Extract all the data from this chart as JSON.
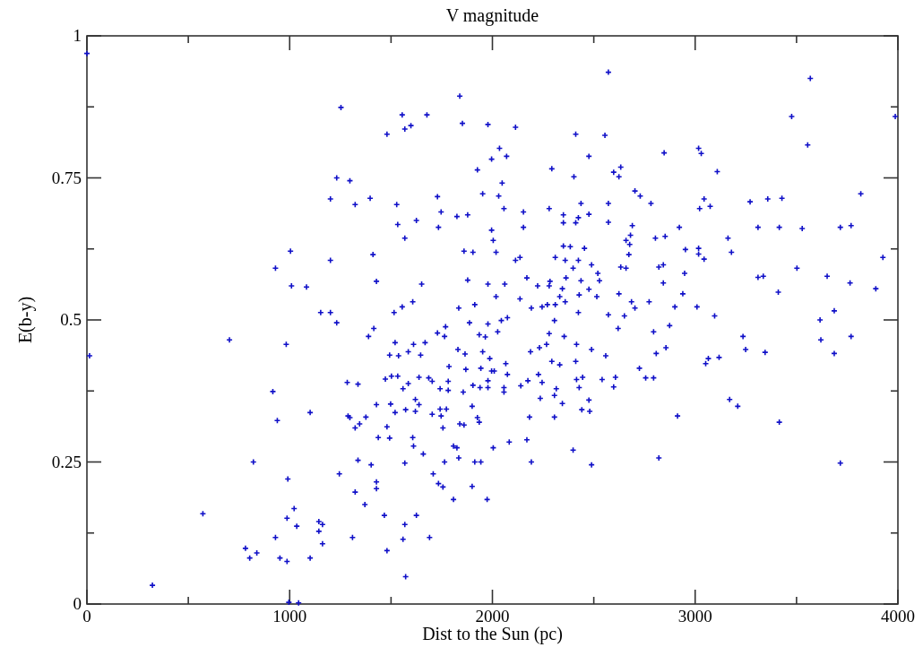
{
  "chart_data": {
    "type": "scatter",
    "x2label": "V magnitude",
    "xlabel": "Dist to the Sun (pc)",
    "ylabel": "E(b-y)",
    "xlim": [
      0,
      4000
    ],
    "ylim": [
      0,
      1
    ],
    "xticks": [
      0,
      {
        "value": 500,
        "label": null
      },
      1000,
      {
        "value": 1500,
        "label": null
      },
      2000,
      {
        "value": 2500,
        "label": null
      },
      3000,
      {
        "value": 3500,
        "label": null
      },
      4000
    ],
    "yticks": [
      0,
      {
        "value": 0.125,
        "label": null
      },
      0.25,
      {
        "value": 0.375,
        "label": null
      },
      0.5,
      {
        "value": 0.625,
        "label": null
      },
      0.75,
      {
        "value": 0.875,
        "label": null
      },
      1
    ],
    "grid": false,
    "marker": "cross",
    "series": [
      {
        "color": "#1010c8",
        "x": [
          0,
          13,
          703,
          983,
          1232,
          1415,
          1389,
          1520,
          1493,
          1537,
          1585,
          1611,
          1646,
          1668,
          1729,
          1769,
          1764,
          1830,
          1865,
          1887,
          1935,
          1965,
          1978,
          1952,
          1987,
          1869,
          1943,
          1996,
          1786,
          1472,
          1502,
          1533,
          1559,
          1585,
          1638,
          1686,
          1703,
          1742,
          1782,
          1782,
          1856,
          1904,
          1939,
          1978,
          1978,
          1284,
          1337,
          917,
          939,
          1101,
          1428,
          1498,
          1520,
          1572,
          1620,
          1638,
          1620,
          1703,
          1742,
          1747,
          1773,
          1756,
          1900,
          1926,
          1935,
          1839,
          1860,
          1288,
          1297,
          1376,
          1345,
          1323,
          1480,
          1437,
          1493,
          1607,
          1611,
          1659,
          1808,
          1825,
          1834,
          1764,
          1913,
          1943,
          2004,
          1568,
          1337,
          1402,
          821,
          1245,
          991,
          1428,
          1428,
          1708,
          1734,
          1756,
          1900,
          1323,
          1371,
          1808,
          1974,
          1467,
          1625,
          572,
          1022,
          987,
          1035,
          1144,
          1162,
          1144,
          1162,
          1568,
          930,
          1310,
          1559,
          1690,
          782,
          803,
          838,
          952,
          987,
          1101,
          1480,
          1572,
          323,
          996,
          1044,
          1253,
          1555,
          1677,
          1568,
          1598,
          1480,
          1839,
          1852,
          1978,
          1996,
          1926,
          1952,
          1232,
          1297,
          1201,
          1323,
          1397,
          1528,
          1729,
          1747,
          1533,
          1625,
          1734,
          1825,
          1878,
          1996,
          2004,
          1568,
          1004,
          1411,
          1860,
          1904,
          930,
          1201,
          1009,
          1083,
          1428,
          1651,
          1878,
          1978,
          1153,
          1201,
          1515,
          1555,
          1607,
          1834,
          1913,
          2572,
          3568,
          3476,
          3987,
          3555,
          2114,
          2411,
          2555,
          2035,
          2070,
          2847,
          3017,
          3030,
          2476,
          2293,
          2402,
          2598,
          2633,
          2624,
          3109,
          2048,
          2031,
          2057,
          2280,
          2437,
          2350,
          2350,
          2411,
          2424,
          2476,
          2153,
          2153,
          2572,
          2572,
          2703,
          2729,
          2782,
          2690,
          2681,
          2659,
          2677,
          2673,
          2922,
          2804,
          2852,
          3044,
          3022,
          3074,
          3271,
          3358,
          3428,
          3817,
          3310,
          3415,
          3528,
          3716,
          3769,
          3162,
          3179,
          2952,
          3017,
          3017,
          3044,
          3926,
          3502,
          3891,
          3310,
          3336,
          3410,
          3651,
          3764,
          3686,
          3616,
          2018,
          2114,
          2136,
          2310,
          2359,
          2398,
          2424,
          2489,
          2454,
          2384,
          2350,
          2520,
          2528,
          2633,
          2659,
          2821,
          2843,
          2843,
          2948,
          2939,
          2900,
          3009,
          3096,
          2773,
          2686,
          2703,
          2624,
          2572,
          2651,
          2424,
          2515,
          2476,
          2437,
          2428,
          2363,
          2345,
          2332,
          2359,
          2284,
          2280,
          2223,
          2170,
          2136,
          2061,
          2018,
          2192,
          2245,
          2271,
          2310,
          2306,
          2044,
          2074,
          2026,
          2280,
          2354,
          2620,
          2795,
          2874,
          2415,
          2267,
          2232,
          2188,
          2489,
          2559,
          2808,
          2856,
          2293,
          2332,
          2411,
          2009,
          2066,
          2074,
          2227,
          2175,
          2140,
          2245,
          2315,
          2306,
          2236,
          2345,
          2415,
          2445,
          2428,
          2541,
          2607,
          2598,
          2476,
          2441,
          2480,
          2183,
          2306,
          2057,
          2057,
          2725,
          2756,
          2795,
          3052,
          3065,
          3118,
          3236,
          3249,
          3345,
          3620,
          3686,
          3769,
          3170,
          3210,
          2913,
          3415,
          2083,
          2170,
          2398,
          2192,
          2489,
          2821,
          3716
        ],
        "values": [
          0.969,
          0.437,
          0.465,
          0.457,
          0.495,
          0.485,
          0.471,
          0.46,
          0.438,
          0.437,
          0.444,
          0.457,
          0.438,
          0.46,
          0.477,
          0.488,
          0.471,
          0.448,
          0.44,
          0.495,
          0.474,
          0.47,
          0.493,
          0.444,
          0.432,
          0.413,
          0.415,
          0.41,
          0.418,
          0.396,
          0.401,
          0.401,
          0.379,
          0.388,
          0.399,
          0.398,
          0.392,
          0.379,
          0.392,
          0.376,
          0.373,
          0.385,
          0.381,
          0.381,
          0.393,
          0.39,
          0.387,
          0.374,
          0.323,
          0.337,
          0.351,
          0.352,
          0.337,
          0.342,
          0.36,
          0.351,
          0.339,
          0.334,
          0.343,
          0.331,
          0.343,
          0.31,
          0.348,
          0.328,
          0.32,
          0.317,
          0.315,
          0.331,
          0.328,
          0.329,
          0.317,
          0.31,
          0.312,
          0.293,
          0.292,
          0.293,
          0.278,
          0.264,
          0.278,
          0.275,
          0.257,
          0.25,
          0.25,
          0.25,
          0.275,
          0.248,
          0.253,
          0.245,
          0.25,
          0.229,
          0.22,
          0.215,
          0.203,
          0.229,
          0.212,
          0.206,
          0.207,
          0.197,
          0.175,
          0.184,
          0.184,
          0.156,
          0.156,
          0.159,
          0.168,
          0.151,
          0.137,
          0.145,
          0.14,
          0.128,
          0.106,
          0.14,
          0.117,
          0.117,
          0.114,
          0.117,
          0.098,
          0.081,
          0.09,
          0.081,
          0.075,
          0.081,
          0.094,
          0.048,
          0.033,
          0.003,
          0.002,
          0.874,
          0.861,
          0.861,
          0.836,
          0.842,
          0.827,
          0.894,
          0.846,
          0.844,
          0.783,
          0.764,
          0.722,
          0.75,
          0.745,
          0.713,
          0.703,
          0.714,
          0.703,
          0.717,
          0.69,
          0.668,
          0.675,
          0.663,
          0.682,
          0.685,
          0.658,
          0.64,
          0.644,
          0.621,
          0.615,
          0.621,
          0.619,
          0.591,
          0.605,
          0.56,
          0.558,
          0.568,
          0.563,
          0.57,
          0.563,
          0.513,
          0.513,
          0.513,
          0.523,
          0.532,
          0.521,
          0.527,
          0.936,
          0.925,
          0.858,
          0.858,
          0.808,
          0.839,
          0.827,
          0.825,
          0.802,
          0.788,
          0.794,
          0.802,
          0.793,
          0.788,
          0.766,
          0.752,
          0.76,
          0.769,
          0.752,
          0.761,
          0.741,
          0.718,
          0.696,
          0.696,
          0.705,
          0.685,
          0.671,
          0.671,
          0.68,
          0.686,
          0.69,
          0.663,
          0.705,
          0.672,
          0.727,
          0.718,
          0.705,
          0.666,
          0.649,
          0.64,
          0.633,
          0.615,
          0.663,
          0.644,
          0.647,
          0.713,
          0.696,
          0.7,
          0.708,
          0.713,
          0.714,
          0.722,
          0.663,
          0.663,
          0.661,
          0.663,
          0.666,
          0.644,
          0.619,
          0.624,
          0.626,
          0.616,
          0.607,
          0.61,
          0.591,
          0.555,
          0.575,
          0.577,
          0.549,
          0.577,
          0.565,
          0.516,
          0.5,
          0.619,
          0.605,
          0.61,
          0.61,
          0.605,
          0.591,
          0.605,
          0.597,
          0.626,
          0.629,
          0.63,
          0.582,
          0.569,
          0.593,
          0.591,
          0.593,
          0.597,
          0.565,
          0.582,
          0.546,
          0.523,
          0.523,
          0.507,
          0.532,
          0.532,
          0.521,
          0.546,
          0.509,
          0.507,
          0.513,
          0.541,
          0.554,
          0.569,
          0.544,
          0.574,
          0.555,
          0.541,
          0.532,
          0.568,
          0.56,
          0.56,
          0.574,
          0.537,
          0.563,
          0.541,
          0.521,
          0.523,
          0.527,
          0.527,
          0.499,
          0.499,
          0.504,
          0.479,
          0.476,
          0.471,
          0.485,
          0.479,
          0.49,
          0.457,
          0.457,
          0.451,
          0.444,
          0.448,
          0.437,
          0.441,
          0.451,
          0.427,
          0.421,
          0.427,
          0.41,
          0.423,
          0.404,
          0.404,
          0.393,
          0.384,
          0.39,
          0.379,
          0.367,
          0.362,
          0.353,
          0.395,
          0.399,
          0.381,
          0.395,
          0.399,
          0.382,
          0.359,
          0.342,
          0.339,
          0.329,
          0.329,
          0.381,
          0.373,
          0.415,
          0.398,
          0.398,
          0.423,
          0.432,
          0.434,
          0.471,
          0.448,
          0.443,
          0.465,
          0.441,
          0.471,
          0.36,
          0.348,
          0.331,
          0.32,
          0.285,
          0.289,
          0.271,
          0.25,
          0.245,
          0.257,
          0.248
        ]
      }
    ]
  }
}
